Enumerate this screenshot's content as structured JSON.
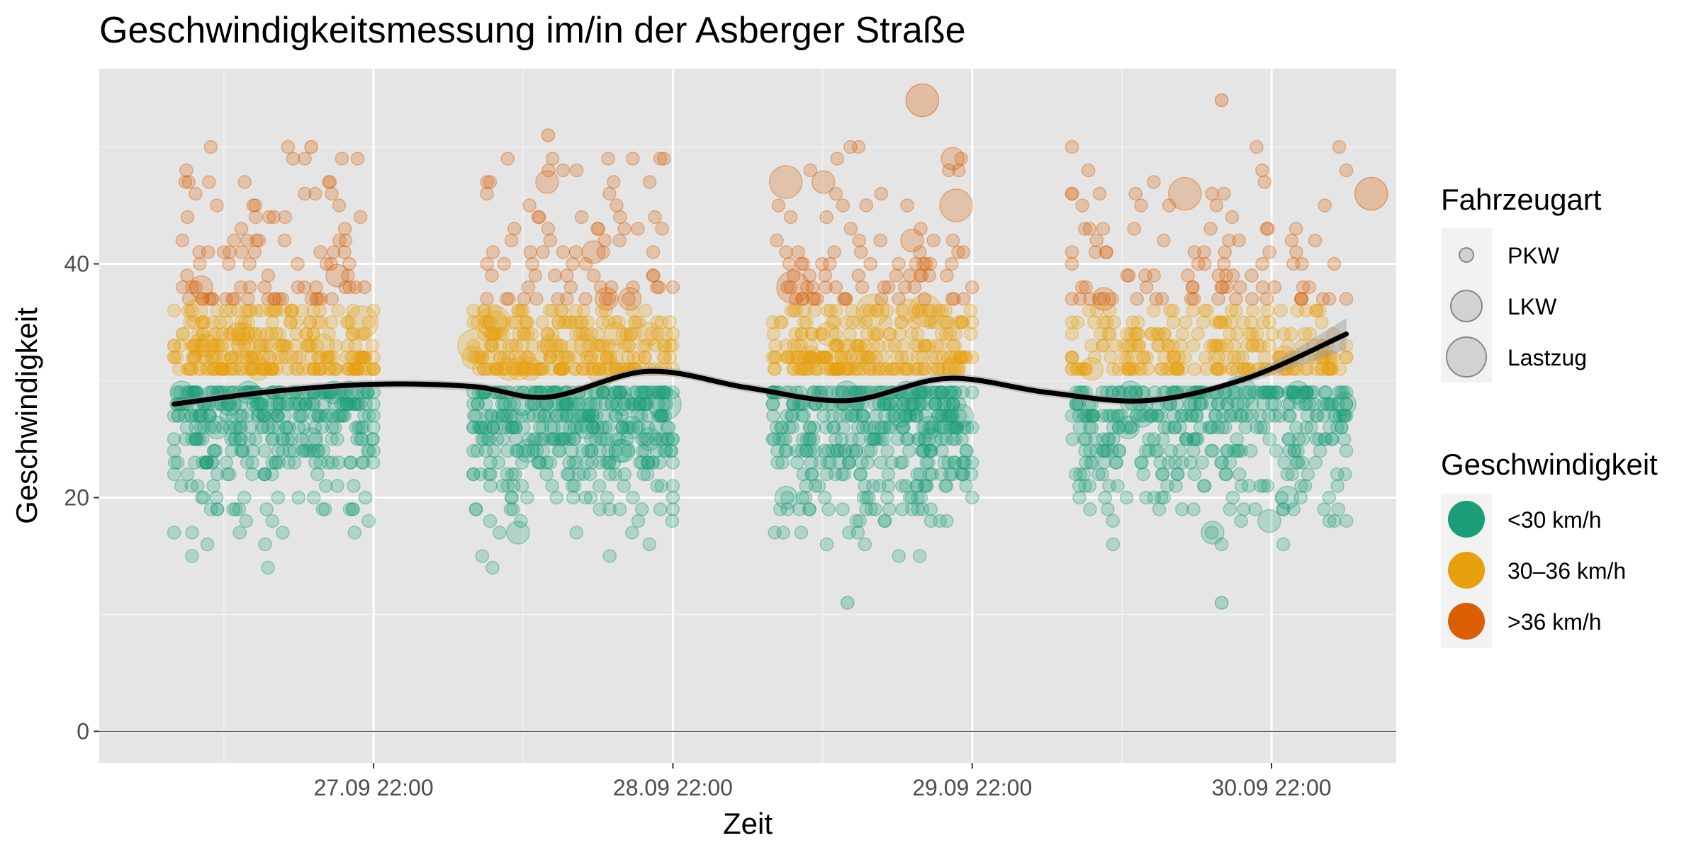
{
  "chart_data": {
    "type": "scatter",
    "title": "Geschwindigkeitsmessung im/in der Asberger Straße",
    "xlabel": "Zeit",
    "ylabel": "Geschwindigkeit",
    "x_ticks": [
      "27.09 22:00",
      "28.09 22:00",
      "29.09 22:00",
      "30.09 22:00"
    ],
    "x_range": [
      "2019-09-27T00:00",
      "2019-10-01T08:00"
    ],
    "y_ticks": [
      0,
      20,
      40
    ],
    "ylim": [
      -2.7,
      56.7
    ],
    "grid": true,
    "background": "#e5e5e5",
    "legend_position": "right",
    "legends": {
      "size": {
        "title": "Fahrzeugart",
        "entries": [
          "PKW",
          "LKW",
          "Lastzug"
        ]
      },
      "color": {
        "title": "Geschwindigkeit",
        "entries": [
          {
            "label": "<30 km/h",
            "color": "#1b9e77"
          },
          {
            "label": "30–36 km/h",
            "color": "#e6a00c"
          },
          {
            "label": ">36 km/h",
            "color": "#d95f02"
          }
        ]
      }
    },
    "measurement_periods": [
      {
        "start": "2019-09-27T06:00",
        "end": "2019-09-27T22:00"
      },
      {
        "start": "2019-09-28T06:00",
        "end": "2019-09-28T22:00"
      },
      {
        "start": "2019-09-29T06:00",
        "end": "2019-09-29T22:00"
      },
      {
        "start": "2019-09-30T06:00",
        "end": "2019-10-01T04:00"
      }
    ],
    "smooth_line": {
      "name": "Trend",
      "color": "#000000",
      "points": [
        {
          "t": "2019-09-27T06:00",
          "v": 28.0
        },
        {
          "t": "2019-09-27T14:00",
          "v": 29.1
        },
        {
          "t": "2019-09-27T22:00",
          "v": 29.7
        },
        {
          "t": "2019-09-28T06:00",
          "v": 29.5
        },
        {
          "t": "2019-09-28T12:00",
          "v": 28.6
        },
        {
          "t": "2019-09-28T20:00",
          "v": 30.8
        },
        {
          "t": "2019-09-29T04:00",
          "v": 29.4
        },
        {
          "t": "2019-09-29T12:00",
          "v": 28.3
        },
        {
          "t": "2019-09-29T20:00",
          "v": 30.2
        },
        {
          "t": "2019-09-30T04:00",
          "v": 29.0
        },
        {
          "t": "2019-09-30T12:00",
          "v": 28.3
        },
        {
          "t": "2019-09-30T20:00",
          "v": 30.2
        },
        {
          "t": "2019-10-01T04:00",
          "v": 34.0
        }
      ]
    },
    "notable_points": [
      {
        "t": "2019-09-29T12:00",
        "v": 11,
        "type": "PKW"
      },
      {
        "t": "2019-09-30T18:00",
        "v": 11,
        "type": "PKW"
      },
      {
        "t": "2019-09-30T18:00",
        "v": 54,
        "type": "PKW"
      },
      {
        "t": "2019-09-29T18:00",
        "v": 54,
        "type": "Lastzug"
      },
      {
        "t": "2019-10-01T06:00",
        "v": 46,
        "type": "Lastzug"
      },
      {
        "t": "2019-09-27T17:00",
        "v": 50,
        "type": "PKW"
      },
      {
        "t": "2019-09-28T12:00",
        "v": 51,
        "type": "PKW"
      }
    ]
  }
}
